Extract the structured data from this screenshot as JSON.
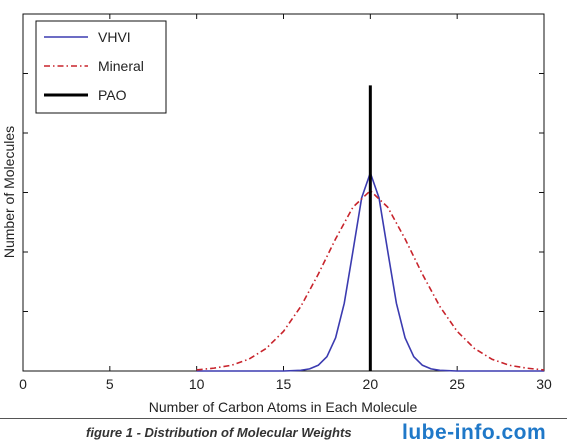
{
  "chart_data": {
    "type": "line",
    "title": "",
    "xlabel": "Number of Carbon Atoms in Each Molecule",
    "ylabel": "Number of Molecules",
    "xlim": [
      0,
      30
    ],
    "ylim": [
      0,
      1
    ],
    "xticks": [
      0,
      5,
      10,
      15,
      20,
      25,
      30
    ],
    "show_yticklabels": false,
    "grid": false,
    "legend_position": "top-left",
    "series": [
      {
        "name": "VHVI",
        "color": "#3b3bb0",
        "style": "solid",
        "x": [
          10,
          15,
          16,
          16.5,
          17,
          17.5,
          18,
          18.5,
          19,
          19.5,
          20,
          20.5,
          21,
          21.5,
          22,
          22.5,
          23,
          23.5,
          24,
          25,
          30
        ],
        "y": [
          0,
          0,
          0.002,
          0.006,
          0.016,
          0.04,
          0.093,
          0.19,
          0.336,
          0.485,
          0.555,
          0.485,
          0.336,
          0.19,
          0.093,
          0.04,
          0.016,
          0.006,
          0.002,
          0,
          0
        ]
      },
      {
        "name": "Mineral",
        "color": "#c8242c",
        "style": "dash-dot",
        "x": [
          10,
          11,
          12,
          13,
          14,
          15,
          16,
          17,
          18,
          19,
          20,
          21,
          22,
          23,
          24,
          25,
          26,
          27,
          28,
          29,
          30
        ],
        "y": [
          0.003,
          0.008,
          0.016,
          0.033,
          0.063,
          0.111,
          0.181,
          0.271,
          0.37,
          0.459,
          0.505,
          0.459,
          0.37,
          0.271,
          0.181,
          0.111,
          0.063,
          0.033,
          0.016,
          0.008,
          0.003
        ]
      },
      {
        "name": "PAO",
        "color": "#000000",
        "style": "solid",
        "x": [
          20,
          20
        ],
        "y": [
          0,
          0.8
        ]
      }
    ]
  },
  "caption": {
    "text": "figure 1 - Distribution of Molecular Weights",
    "watermark": "lube-info.com"
  }
}
